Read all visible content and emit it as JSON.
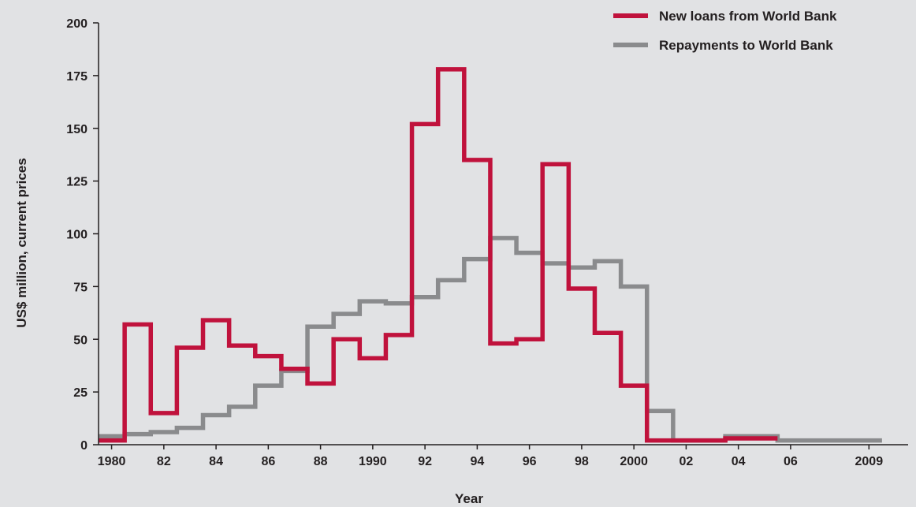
{
  "chart_data": {
    "type": "line",
    "step": true,
    "title": "",
    "xlabel": "Year",
    "ylabel": "US$ million, current prices",
    "ylim": [
      0,
      200
    ],
    "yticks": [
      0,
      25,
      50,
      75,
      100,
      125,
      150,
      175,
      200
    ],
    "xlim": [
      1979.5,
      2010.5
    ],
    "xticks": [
      {
        "value": 1980,
        "label": "1980"
      },
      {
        "value": 1982,
        "label": "82"
      },
      {
        "value": 1984,
        "label": "84"
      },
      {
        "value": 1986,
        "label": "86"
      },
      {
        "value": 1988,
        "label": "88"
      },
      {
        "value": 1990,
        "label": "1990"
      },
      {
        "value": 1992,
        "label": "92"
      },
      {
        "value": 1994,
        "label": "94"
      },
      {
        "value": 1996,
        "label": "96"
      },
      {
        "value": 1998,
        "label": "98"
      },
      {
        "value": 2000,
        "label": "2000"
      },
      {
        "value": 2002,
        "label": "02"
      },
      {
        "value": 2004,
        "label": "04"
      },
      {
        "value": 2006,
        "label": "06"
      },
      {
        "value": 2009,
        "label": "2009"
      }
    ],
    "legend_position": "top-right",
    "grid": false,
    "x": [
      1980,
      1981,
      1982,
      1983,
      1984,
      1985,
      1986,
      1987,
      1988,
      1989,
      1990,
      1991,
      1992,
      1993,
      1994,
      1995,
      1996,
      1997,
      1998,
      1999,
      2000,
      2001,
      2002,
      2003,
      2004,
      2005,
      2006,
      2007,
      2008,
      2009
    ],
    "series": [
      {
        "name": "New loans from World Bank",
        "color": "#c0123c",
        "values": [
          2,
          57,
          15,
          46,
          59,
          47,
          42,
          36,
          29,
          50,
          41,
          52,
          152,
          178,
          135,
          48,
          50,
          133,
          74,
          53,
          28,
          2,
          2,
          2,
          3,
          3,
          null,
          null,
          null,
          null
        ]
      },
      {
        "name": "Repayments to World Bank",
        "color": "#8a8b8d",
        "values": [
          4,
          5,
          6,
          8,
          14,
          18,
          28,
          35,
          56,
          62,
          68,
          67,
          70,
          78,
          88,
          98,
          91,
          86,
          84,
          87,
          75,
          16,
          2,
          2,
          4,
          4,
          2,
          2,
          2,
          2
        ]
      }
    ]
  }
}
